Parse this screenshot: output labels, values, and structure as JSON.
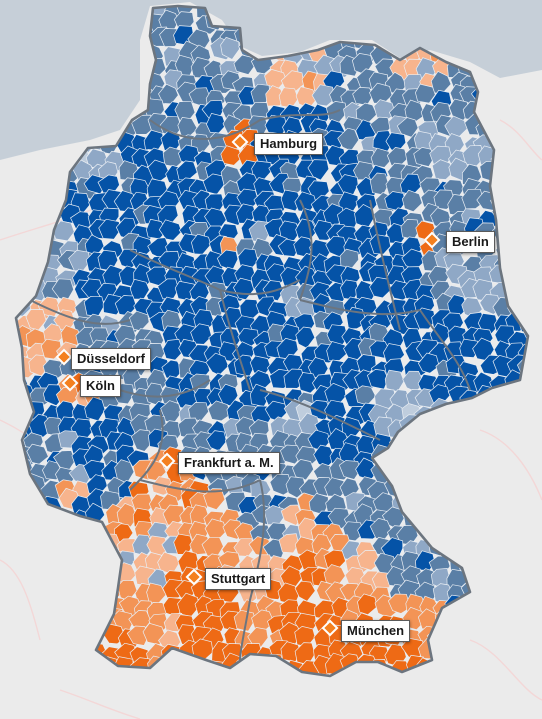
{
  "map": {
    "colors": {
      "land_outside": "#ebebeb",
      "water": "#c6cfd8",
      "border_state": "#6c757f",
      "border_district": "#e9eef4",
      "marker": "#f4801f",
      "scale": [
        "#0553a7",
        "#5a7fa6",
        "#8fa8c6",
        "#bfcddd",
        "#f7b48d",
        "#f39456",
        "#ee6a15"
      ]
    },
    "cities": [
      {
        "name": "Hamburg"
      },
      {
        "name": "Berlin"
      },
      {
        "name": "Düsseldorf"
      },
      {
        "name": "Köln"
      },
      {
        "name": "Frankfurt a. M."
      },
      {
        "name": "Stuttgart"
      },
      {
        "name": "München"
      }
    ]
  }
}
